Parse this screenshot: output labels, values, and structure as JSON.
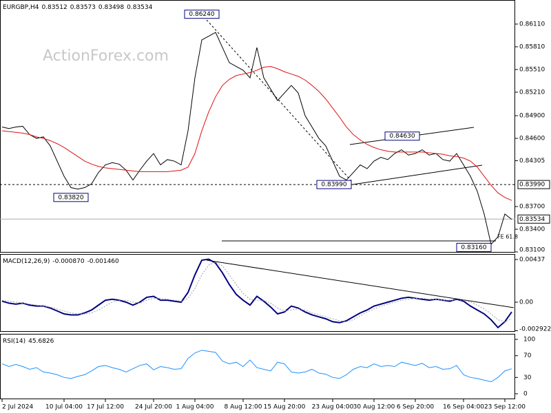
{
  "chart_data": [
    {
      "type": "line",
      "title": "EURGBP,H4",
      "quote": [
        0.83512,
        0.83573,
        0.83498,
        0.83534
      ],
      "watermark": "ActionForex.com",
      "categories": [
        "2 Jul 2024",
        null,
        null,
        null,
        null,
        null,
        null,
        null,
        null,
        "10 Jul 04:00",
        null,
        null,
        null,
        null,
        null,
        "17 Jul 12:00",
        null,
        null,
        null,
        null,
        null,
        null,
        "24 Jul 20:00",
        null,
        null,
        null,
        null,
        null,
        "1 Aug 04:00",
        null,
        null,
        null,
        null,
        null,
        null,
        "8 Aug 12:00",
        null,
        null,
        null,
        null,
        null,
        "15 Aug 20:00",
        null,
        null,
        null,
        null,
        null,
        null,
        "23 Aug 04:00",
        null,
        null,
        null,
        null,
        null,
        "30 Aug 12:00",
        null,
        null,
        null,
        null,
        null,
        "6 Sep 20:00",
        null,
        null,
        null,
        null,
        null,
        null,
        "16 Sep 04:00",
        null,
        null,
        null,
        null,
        null,
        "23 Sep 12:00",
        null
      ],
      "series": [
        {
          "color": "#000000",
          "values": [
            0.8475,
            0.8473,
            0.8475,
            0.8476,
            0.8465,
            0.846,
            0.8462,
            0.845,
            0.843,
            0.841,
            0.8395,
            0.8393,
            0.8395,
            0.84,
            0.8415,
            0.8425,
            0.8428,
            0.8426,
            0.8418,
            0.8405,
            0.8418,
            0.843,
            0.844,
            0.8425,
            0.8432,
            0.843,
            0.8425,
            0.847,
            0.854,
            0.859,
            0.8595,
            0.86,
            0.858,
            0.856,
            0.8555,
            0.855,
            0.854,
            0.858,
            0.854,
            0.8525,
            0.851,
            0.852,
            0.853,
            0.852,
            0.849,
            0.8475,
            0.846,
            0.845,
            0.843,
            0.841,
            0.8405,
            0.8415,
            0.8425,
            0.842,
            0.843,
            0.8435,
            0.8432,
            0.844,
            0.8445,
            0.8438,
            0.844,
            0.8445,
            0.8438,
            0.844,
            0.8432,
            0.843,
            0.844,
            0.8425,
            0.841,
            0.839,
            0.836,
            0.832,
            0.833,
            0.836,
            0.8353
          ]
        },
        {
          "color": "#e01010",
          "values": [
            0.847,
            0.8469,
            0.8468,
            0.8467,
            0.8465,
            0.8462,
            0.846,
            0.8457,
            0.8453,
            0.8448,
            0.8442,
            0.8436,
            0.843,
            0.8426,
            0.8423,
            0.8421,
            0.842,
            0.8419,
            0.8418,
            0.8417,
            0.8416,
            0.8416,
            0.8416,
            0.8416,
            0.8416,
            0.8417,
            0.8418,
            0.8422,
            0.844,
            0.847,
            0.8495,
            0.8515,
            0.853,
            0.8538,
            0.8543,
            0.8545,
            0.8547,
            0.855,
            0.8554,
            0.8555,
            0.8552,
            0.8548,
            0.8545,
            0.8542,
            0.8537,
            0.853,
            0.8522,
            0.8512,
            0.85,
            0.8488,
            0.8475,
            0.8465,
            0.8458,
            0.8452,
            0.8448,
            0.8445,
            0.8443,
            0.8442,
            0.8442,
            0.8442,
            0.8442,
            0.8442,
            0.8441,
            0.844,
            0.8439,
            0.8437,
            0.8436,
            0.8434,
            0.843,
            0.8422,
            0.841,
            0.8398,
            0.8388,
            0.8382,
            0.8378
          ]
        }
      ],
      "ylim": [
        0.83091,
        0.86428
      ],
      "yticks": [
        {
          "value": 0.8611,
          "label": "0.86110"
        },
        {
          "value": 0.8581,
          "label": "0.85810"
        },
        {
          "value": 0.8551,
          "label": "0.85510"
        },
        {
          "value": 0.8521,
          "label": "0.85210"
        },
        {
          "value": 0.849,
          "label": "0.84900"
        },
        {
          "value": 0.846,
          "label": "0.84600"
        },
        0.84305,
        {
          "value": 0.837,
          "label": "0.83700"
        },
        {
          "value": 0.834,
          "label": "0.83400"
        },
        {
          "value": 0.831,
          "label": "0.83100"
        }
      ],
      "level": {
        "value": 0.8399,
        "label": "0.83990"
      },
      "last": 0.83534,
      "annotations": [
        {
          "value": 0.8624,
          "label": "0.86240"
        },
        {
          "value": 0.8382,
          "label": "0.83820"
        },
        {
          "value": 0.8399,
          "label": "0.83990"
        },
        {
          "value": 0.8463,
          "label": "0.84630"
        },
        {
          "value": 0.8316,
          "label": "0.83160"
        }
      ],
      "note": "FE 61.8"
    },
    {
      "type": "line",
      "title": "MACD(12,26,9)",
      "readout": [
        {
          "value": -0.00087,
          "label": "-0.000870"
        },
        {
          "value": -0.00146,
          "label": "-0.001460"
        }
      ],
      "series": [
        {
          "color": "#000080",
          "values": [
            0.0001,
            -0.0001,
            -0.0002,
            -0.0001,
            -0.0003,
            -0.0004,
            -0.0004,
            -0.0006,
            -0.0009,
            -0.0012,
            -0.0013,
            -0.0013,
            -0.0011,
            -0.0008,
            -0.0003,
            0.0002,
            0.0003,
            0.0002,
            0,
            -0.0003,
            0,
            0.0005,
            0.0006,
            0.0002,
            0.0002,
            0.0001,
            0,
            0.001,
            0.0028,
            0.0043,
            0.0044,
            0.004,
            0.003,
            0.0018,
            0.0008,
            0.0002,
            -0.0003,
            0.0006,
            0.0001,
            -0.0005,
            -0.0012,
            -0.001,
            -0.0004,
            -0.0006,
            -0.001,
            -0.0013,
            -0.0015,
            -0.0017,
            -0.002,
            -0.0021,
            -0.0019,
            -0.0015,
            -0.0011,
            -0.0008,
            -0.0004,
            -0.0002,
            0,
            0.0002,
            0.0004,
            0.0005,
            0.0004,
            0.0003,
            0.0002,
            0.0003,
            0.0002,
            0.0001,
            0.0003,
            0.0001,
            -0.0004,
            -0.0008,
            -0.0012,
            -0.0018,
            -0.0026,
            -0.002,
            -0.001
          ]
        },
        {
          "color": "#a0a0a0",
          "values": [
            0.0002,
            0.0001,
            0,
            -0.0001,
            -0.0002,
            -0.0003,
            -0.0004,
            -0.0005,
            -0.0007,
            -0.0009,
            -0.0011,
            -0.0012,
            -0.0012,
            -0.0011,
            -0.0008,
            -0.0004,
            0,
            0.0002,
            0.0002,
            0,
            -0.0001,
            0.0002,
            0.0004,
            0.0004,
            0.0003,
            0.0002,
            0.0001,
            0.0004,
            0.0014,
            0.0028,
            0.0038,
            0.0041,
            0.0037,
            0.0028,
            0.0018,
            0.0009,
            0.0003,
            0.0002,
            0.0002,
            -0.0001,
            -0.0006,
            -0.0009,
            -0.0008,
            -0.0007,
            -0.0008,
            -0.0011,
            -0.0013,
            -0.0015,
            -0.0017,
            -0.0019,
            -0.002,
            -0.0018,
            -0.0014,
            -0.001,
            -0.0007,
            -0.0004,
            -0.0002,
            0,
            0.0002,
            0.0003,
            0.0004,
            0.0004,
            0.0003,
            0.0003,
            0.0002,
            0.0002,
            0.0002,
            0.0002,
            0,
            -0.0003,
            -0.0007,
            -0.0012,
            -0.0018,
            -0.002,
            -0.0017
          ]
        }
      ],
      "ylim": [
        -0.003031,
        0.004863
      ],
      "yticks": [
        0.00437,
        {
          "value": 0,
          "label": "0.00"
        },
        -0.002922
      ]
    },
    {
      "type": "line",
      "title": "RSI(14)",
      "readout": 45.6826,
      "series": [
        {
          "color": "#1e90ff",
          "values": [
            55,
            50,
            54,
            50,
            45,
            48,
            40,
            38,
            35,
            30,
            28,
            32,
            35,
            42,
            50,
            52,
            48,
            45,
            40,
            46,
            52,
            55,
            44,
            50,
            48,
            45,
            46,
            65,
            75,
            80,
            78,
            76,
            60,
            55,
            58,
            50,
            62,
            48,
            45,
            42,
            58,
            55,
            40,
            38,
            40,
            45,
            38,
            36,
            30,
            28,
            35,
            45,
            50,
            48,
            55,
            50,
            52,
            50,
            58,
            55,
            52,
            56,
            48,
            50,
            45,
            46,
            52,
            35,
            30,
            28,
            25,
            22,
            30,
            42,
            46
          ]
        }
      ],
      "ylim": [
        -10.1,
        108.9
      ],
      "yticks": [
        100,
        70,
        30,
        0
      ]
    }
  ]
}
